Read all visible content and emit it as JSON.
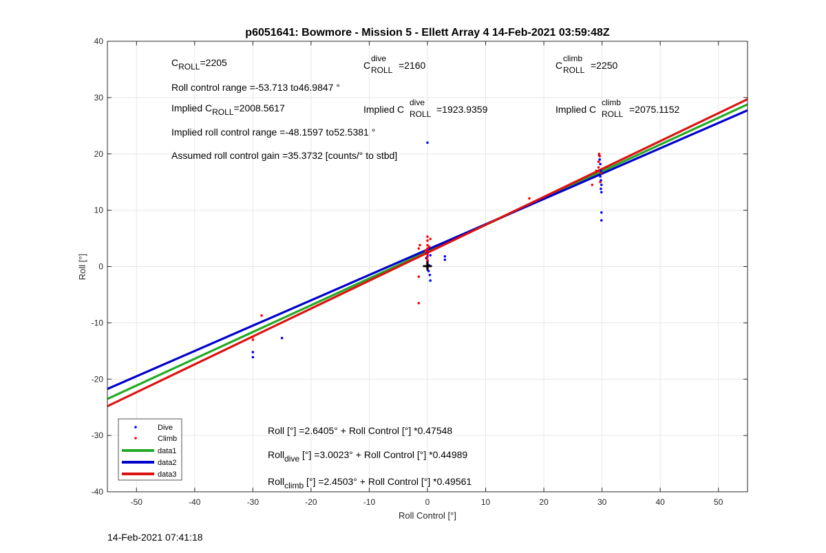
{
  "chart_data": {
    "type": "scatter",
    "title": "p6051641: Bowmore - Mission 5 - Ellett Array 4 14-Feb-2021 03:59:48Z",
    "xlabel": "Roll Control [°]",
    "ylabel": "Roll [°]",
    "xlim": [
      -55,
      55
    ],
    "ylim": [
      -40,
      40
    ],
    "xticks": [
      -50,
      -40,
      -30,
      -20,
      -10,
      0,
      10,
      20,
      30,
      40,
      50
    ],
    "yticks": [
      -40,
      -30,
      -20,
      -10,
      0,
      10,
      20,
      30,
      40
    ],
    "grid": true,
    "legend_position": "bottom-left",
    "marker": {
      "x": 0,
      "y": 0,
      "label": "+",
      "color": "#000000"
    },
    "series": [
      {
        "name": "Dive",
        "kind": "points",
        "color": "#0000ff",
        "points": [
          [
            -30,
            -15.2
          ],
          [
            -30,
            -16.1
          ],
          [
            -25,
            -12.7
          ],
          [
            0,
            22.0
          ],
          [
            0,
            3.0
          ],
          [
            0,
            2.5
          ],
          [
            0,
            1.8
          ],
          [
            0,
            1.0
          ],
          [
            0,
            0.5
          ],
          [
            0,
            -0.3
          ],
          [
            0.2,
            -0.8
          ],
          [
            0.4,
            -1.5
          ],
          [
            0.5,
            -2.5
          ],
          [
            0.5,
            2.0
          ],
          [
            0.3,
            0.2
          ],
          [
            -0.2,
            1.5
          ],
          [
            3,
            1.2
          ],
          [
            3,
            1.8
          ],
          [
            29.5,
            19.8
          ],
          [
            29.6,
            19.0
          ],
          [
            29.7,
            18.2
          ],
          [
            29.8,
            17.0
          ],
          [
            29.7,
            16.0
          ],
          [
            29.8,
            15.3
          ],
          [
            29.9,
            14.5
          ],
          [
            29.8,
            13.8
          ],
          [
            29.9,
            13.2
          ],
          [
            29.9,
            9.6
          ],
          [
            29.9,
            8.2
          ]
        ]
      },
      {
        "name": "Climb",
        "kind": "points",
        "color": "#ff0000",
        "points": [
          [
            -30,
            -12.5
          ],
          [
            -30,
            -13.0
          ],
          [
            -28.5,
            -8.7
          ],
          [
            -1.5,
            -6.5
          ],
          [
            -1.5,
            -1.8
          ],
          [
            -1.5,
            3.2
          ],
          [
            -1.3,
            3.8
          ],
          [
            0,
            5.3
          ],
          [
            0,
            4.6
          ],
          [
            0,
            3.8
          ],
          [
            0,
            3.2
          ],
          [
            0,
            2.7
          ],
          [
            0,
            2.2
          ],
          [
            0,
            1.7
          ],
          [
            0,
            1.2
          ],
          [
            0,
            0.8
          ],
          [
            0,
            0.4
          ],
          [
            0,
            -0.2
          ],
          [
            0.5,
            4.9
          ],
          [
            0.3,
            3.5
          ],
          [
            -0.3,
            2.8
          ],
          [
            17.5,
            12.1
          ],
          [
            28.3,
            14.5
          ],
          [
            29.0,
            17.0
          ],
          [
            29.4,
            17.6
          ],
          [
            29.4,
            18.6
          ],
          [
            29.6,
            19.6
          ],
          [
            29.5,
            20.0
          ],
          [
            29.7,
            15.0
          ],
          [
            29.8,
            16.6
          ]
        ]
      },
      {
        "name": "data1",
        "kind": "line",
        "color": "#22aa22",
        "intercept": 2.6405,
        "slope": 0.47548
      },
      {
        "name": "data2",
        "kind": "line",
        "color": "#0000cc",
        "intercept": 3.0023,
        "slope": 0.44989
      },
      {
        "name": "data3",
        "kind": "line",
        "color": "#dd1111",
        "intercept": 2.4503,
        "slope": 0.49561
      }
    ],
    "annotations": {
      "c_roll": {
        "base": "C",
        "sub": "ROLL",
        "value": "=2205"
      },
      "c_roll_dive": {
        "base": "C",
        "sup": "dive",
        "sub": "ROLL",
        "value": "=2160"
      },
      "c_roll_climb": {
        "base": "C",
        "sup": "climb",
        "sub": "ROLL",
        "value": "=2250"
      },
      "roll_control_range": "Roll control range =-53.713 to46.9847 °",
      "implied_c_roll": {
        "prefix": "Implied C",
        "sub": "ROLL",
        "value": "=2008.5617"
      },
      "implied_c_roll_dive": {
        "prefix": "Implied C",
        "sup": "dive",
        "sub": "ROLL",
        "value": "=1923.9359"
      },
      "implied_c_roll_climb": {
        "prefix": "Implied C",
        "sup": "climb",
        "sub": "ROLL",
        "value": "=2075.1152"
      },
      "implied_roll_control_range": "Implied roll control range =-48.1597 to52.5381 °",
      "assumed_gain": "Assumed roll control gain =35.3732 [counts/° to stbd]",
      "fit_all": "Roll [°] =2.6405° + Roll Control [°] *0.47548",
      "fit_dive": {
        "base": "Roll",
        "sub": "dive",
        "rest": " [°] =3.0023° + Roll Control [°] *0.44989"
      },
      "fit_climb": {
        "base": "Roll",
        "sub": "climb",
        "rest": " [°] =2.4503° + Roll Control [°] *0.49561"
      }
    }
  },
  "footer": {
    "timestamp": "14-Feb-2021 07:41:18"
  }
}
